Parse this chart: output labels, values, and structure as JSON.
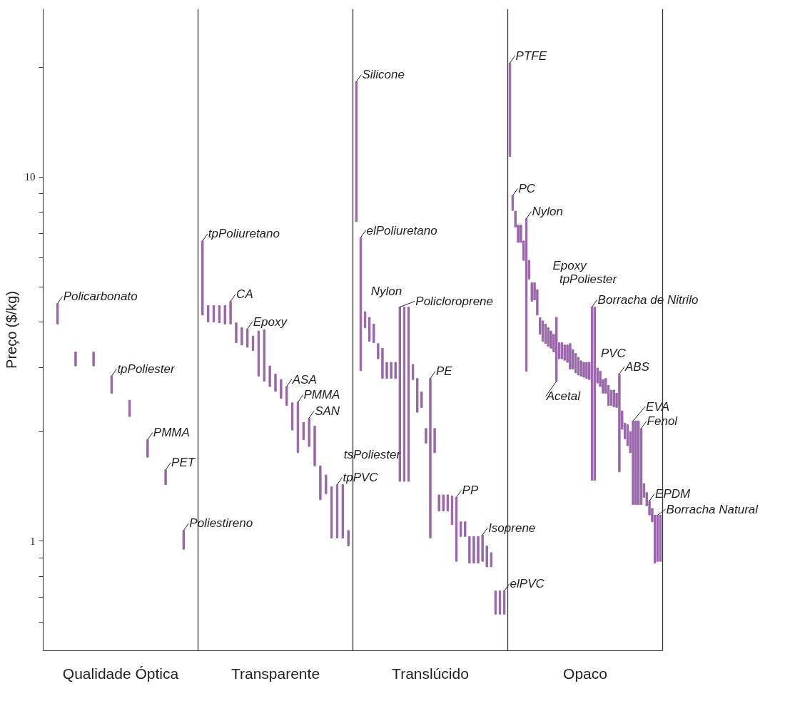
{
  "chart_data": {
    "type": "bar",
    "ylabel": "Preço ($/kg)",
    "log": true,
    "grid": false,
    "categories": [
      "Qualidade Óptica",
      "Transparente",
      "Translúcido",
      "Opaco"
    ],
    "ylim": [
      0.5,
      29
    ],
    "yticks": [
      {
        "value": 0.6,
        "label": null
      },
      {
        "value": 0.7,
        "label": null
      },
      {
        "value": 0.8,
        "label": null
      },
      {
        "value": 0.9,
        "label": null
      },
      1,
      {
        "value": 2,
        "label": null
      },
      {
        "value": 3,
        "label": null
      },
      {
        "value": 4,
        "label": null
      },
      {
        "value": 5,
        "label": null
      },
      {
        "value": 6,
        "label": null
      },
      {
        "value": 7,
        "label": null
      },
      {
        "value": 8,
        "label": null
      },
      {
        "value": 9,
        "label": null
      },
      10,
      {
        "value": 20,
        "label": null
      }
    ],
    "series": [
      {
        "color": "#9966aa",
        "base": [
          3.95,
          4.18,
          7.55,
          11.4
        ],
        "values": [
          0.55,
          2.5,
          10.75,
          9.2
        ]
      },
      {
        "color": "#9966aa",
        "base": [
          3.03,
          4.0,
          2.94,
          8.1
        ],
        "values": [
          0.28,
          0.44,
          3.89,
          0.8
        ]
      },
      {
        "color": "#9966aa",
        "base": [
          3.03,
          4.0,
          3.86,
          7.29
        ],
        "values": [
          0.28,
          0.44,
          0.41,
          0.78
        ]
      },
      {
        "color": "#9966aa",
        "base": [
          2.55,
          3.98,
          3.54,
          6.62
        ],
        "values": [
          0.29,
          0.46,
          0.58,
          0.77
        ]
      },
      {
        "color": "#9966aa",
        "base": [
          2.2,
          3.95,
          3.51,
          6.62
        ],
        "values": [
          0.24,
          0.49,
          0.44,
          0.77
        ]
      },
      {
        "color": "#9966aa",
        "base": [
          1.7,
          3.95,
          3.17,
          5.91
        ],
        "values": [
          0.2,
          0.61,
          0.32,
          0.77
        ]
      },
      {
        "color": "#9966aa",
        "base": [
          1.43,
          3.51,
          2.8,
          2.93
        ],
        "values": [
          0.14,
          0.47,
          0.59,
          4.76
        ]
      },
      {
        "color": "#9966aa",
        "base": [
          0.95,
          3.46,
          2.8,
          5.25
        ],
        "values": [
          0.12,
          0.4,
          0.3,
          0.66
        ]
      },
      {
        "color": "#9966aa",
        "base": [
          null,
          3.41,
          2.8,
          4.56
        ],
        "values": [
          null,
          0.42,
          0.3,
          0.57
        ]
      },
      {
        "color": "#9966aa",
        "base": [
          null,
          3.34,
          2.8,
          4.6
        ],
        "values": [
          null,
          0.32,
          0.3,
          0.53
        ]
      },
      {
        "color": "#9966aa",
        "base": [
          null,
          2.84,
          1.46,
          4.18
        ],
        "values": [
          null,
          0.94,
          2.94,
          0.73
        ]
      },
      {
        "color": "#9966aa",
        "base": [
          null,
          2.75,
          1.46,
          3.7
        ],
        "values": [
          null,
          1.06,
          2.94,
          0.41
        ]
      },
      {
        "color": "#9966aa",
        "base": [
          null,
          2.66,
          1.46,
          3.54
        ],
        "values": [
          null,
          0.37,
          2.94,
          0.49
        ]
      },
      {
        "color": "#9966aa",
        "base": [
          null,
          2.58,
          2.78,
          3.49
        ],
        "values": [
          null,
          0.3,
          0.28,
          0.46
        ]
      },
      {
        "color": "#9966aa",
        "base": [
          null,
          2.47,
          2.26,
          3.43
        ],
        "values": [
          null,
          0.31,
          0.54,
          0.43
        ]
      },
      {
        "color": "#9966aa",
        "base": [
          null,
          2.36,
          2.33,
          3.39
        ],
        "values": [
          null,
          0.3,
          0.24,
          0.39
        ]
      },
      {
        "color": "#9966aa",
        "base": [
          null,
          2.02,
          1.86,
          3.31
        ],
        "values": [
          null,
          0.38,
          0.18,
          0.39
        ]
      },
      {
        "color": "#9966aa",
        "base": [
          null,
          1.75,
          1.02,
          2.75
        ],
        "values": [
          null,
          0.66,
          1.78,
          1.37
        ]
      },
      {
        "color": "#9966aa",
        "base": [
          null,
          1.9,
          1.75,
          3.17
        ],
        "values": [
          null,
          0.22,
          0.29,
          0.34
        ]
      },
      {
        "color": "#9966aa",
        "base": [
          null,
          1.82,
          1.21,
          3.17
        ],
        "values": [
          null,
          0.36,
          0.13,
          0.34
        ]
      },
      {
        "color": "#9966aa",
        "base": [
          null,
          1.61,
          1.21,
          3.14
        ],
        "values": [
          null,
          0.46,
          0.13,
          0.32
        ]
      },
      {
        "color": "#9966aa",
        "base": [
          null,
          1.3,
          1.21,
          3.1
        ],
        "values": [
          null,
          0.31,
          0.13,
          0.36
        ]
      },
      {
        "color": "#9966aa",
        "base": [
          null,
          1.35,
          1.11,
          2.97
        ],
        "values": [
          null,
          0.17,
          0.22,
          0.52
        ]
      },
      {
        "color": "#9966aa",
        "base": [
          null,
          1.02,
          0.88,
          2.97
        ],
        "values": [
          null,
          0.39,
          0.44,
          0.39
        ]
      },
      {
        "color": "#9966aa",
        "base": [
          null,
          1.02,
          1.03,
          2.9
        ],
        "values": [
          null,
          0.41,
          0.1,
          0.38
        ]
      },
      {
        "color": "#9966aa",
        "base": [
          null,
          1.02,
          1.03,
          2.86
        ],
        "values": [
          null,
          0.41,
          0.1,
          0.34
        ]
      },
      {
        "color": "#9966aa",
        "base": [
          null,
          0.97,
          0.87,
          2.84
        ],
        "values": [
          null,
          0.1,
          0.16,
          0.29
        ]
      },
      {
        "color": "#9966aa",
        "base": [
          null,
          null,
          0.87,
          2.82
        ],
        "values": [
          null,
          null,
          0.16,
          0.28
        ]
      },
      {
        "color": "#9966aa",
        "base": [
          null,
          null,
          0.87,
          2.8
        ],
        "values": [
          null,
          null,
          0.16,
          0.3
        ]
      },
      {
        "color": "#9966aa",
        "base": [
          null,
          null,
          0.88,
          2.78
        ],
        "values": [
          null,
          null,
          0.16,
          0.32
        ]
      },
      {
        "color": "#9966aa",
        "base": [
          null,
          null,
          0.85,
          1.47
        ],
        "values": [
          null,
          null,
          0.12,
          2.93
        ]
      },
      {
        "color": "#9966aa",
        "base": [
          null,
          null,
          0.85,
          1.47
        ],
        "values": [
          null,
          null,
          0.08,
          2.93
        ]
      },
      {
        "color": "#9966aa",
        "base": [
          null,
          null,
          0.63,
          2.72
        ],
        "values": [
          null,
          null,
          0.1,
          0.27
        ]
      },
      {
        "color": "#9966aa",
        "base": [
          null,
          null,
          0.63,
          2.66
        ],
        "values": [
          null,
          null,
          0.1,
          0.27
        ]
      },
      {
        "color": "#9966aa",
        "base": [
          null,
          null,
          0.63,
          2.55
        ],
        "values": [
          null,
          null,
          0.1,
          0.23
        ]
      },
      {
        "color": "#9966aa",
        "base": [
          null,
          null,
          null,
          2.55
        ],
        "values": [
          null,
          null,
          null,
          0.25
        ]
      },
      {
        "color": "#9966aa",
        "base": [
          null,
          null,
          null,
          2.36
        ],
        "values": [
          null,
          null,
          null,
          0.32
        ]
      },
      {
        "color": "#9966aa",
        "base": [
          null,
          null,
          null,
          2.36
        ],
        "values": [
          null,
          null,
          null,
          0.24
        ]
      },
      {
        "color": "#9966aa",
        "base": [
          null,
          null,
          null,
          2.34
        ],
        "values": [
          null,
          null,
          null,
          0.26
        ]
      },
      {
        "color": "#9966aa",
        "base": [
          null,
          null,
          null,
          2.33
        ],
        "values": [
          null,
          null,
          null,
          0.22
        ]
      },
      {
        "color": "#9966aa",
        "base": [
          null,
          null,
          null,
          1.55
        ],
        "values": [
          null,
          null,
          null,
          1.33
        ]
      },
      {
        "color": "#9966aa",
        "base": [
          null,
          null,
          null,
          2.03
        ],
        "values": [
          null,
          null,
          null,
          0.25
        ]
      },
      {
        "color": "#9966aa",
        "base": [
          null,
          null,
          null,
          1.91
        ],
        "values": [
          null,
          null,
          null,
          0.2
        ]
      },
      {
        "color": "#9966aa",
        "base": [
          null,
          null,
          null,
          1.83
        ],
        "values": [
          null,
          null,
          null,
          0.26
        ]
      },
      {
        "color": "#9966aa",
        "base": [
          null,
          null,
          null,
          1.75
        ],
        "values": [
          null,
          null,
          null,
          0.25
        ]
      },
      {
        "color": "#9966aa",
        "base": [
          null,
          null,
          null,
          1.26
        ],
        "values": [
          null,
          null,
          null,
          0.88
        ]
      },
      {
        "color": "#9966aa",
        "base": [
          null,
          null,
          null,
          1.26
        ],
        "values": [
          null,
          null,
          null,
          0.88
        ]
      },
      {
        "color": "#9966aa",
        "base": [
          null,
          null,
          null,
          1.26
        ],
        "values": [
          null,
          null,
          null,
          0.88
        ]
      },
      {
        "color": "#9966aa",
        "base": [
          null,
          null,
          null,
          1.26
        ],
        "values": [
          null,
          null,
          null,
          0.78
        ]
      },
      {
        "color": "#9966aa",
        "base": [
          null,
          null,
          null,
          1.32
        ],
        "values": [
          null,
          null,
          null,
          0.12
        ]
      },
      {
        "color": "#9966aa",
        "base": [
          null,
          null,
          null,
          1.25
        ],
        "values": [
          null,
          null,
          null,
          0.11
        ]
      },
      {
        "color": "#9966aa",
        "base": [
          null,
          null,
          null,
          1.18
        ],
        "values": [
          null,
          null,
          null,
          0.11
        ]
      },
      {
        "color": "#9966aa",
        "base": [
          null,
          null,
          null,
          1.13
        ],
        "values": [
          null,
          null,
          null,
          0.1
        ]
      },
      {
        "color": "#9966aa",
        "base": [
          null,
          null,
          null,
          0.87
        ],
        "values": [
          null,
          null,
          null,
          0.31
        ]
      },
      {
        "color": "#9966aa",
        "base": [
          null,
          null,
          null,
          0.88
        ],
        "values": [
          null,
          null,
          null,
          0.3
        ]
      },
      {
        "color": "#9966aa",
        "base": [
          null,
          null,
          null,
          0.88
        ],
        "values": [
          null,
          null,
          null,
          0.3
        ]
      }
    ],
    "annotations": [
      "Policarbonato",
      "tpPoliester",
      "PMMA",
      "PET",
      "Poliestireno",
      "tpPoliuretano",
      "CA",
      "Epoxy",
      "ASA",
      "PMMA",
      "SAN",
      "tsPoliester",
      "tpPVC",
      "Silicone",
      "elPoliuretano",
      "Nylon",
      "Policloroprene",
      "PE",
      "PP",
      "Isoprene",
      "elPVC",
      "PTFE",
      "PC",
      "Nylon",
      "Epoxy",
      "tpPoliester",
      "Acetal",
      "Borracha de Nitrilo",
      "PVC",
      "ABS",
      "EVA",
      "Fenol",
      "EPDM",
      "Borracha Natural"
    ]
  }
}
